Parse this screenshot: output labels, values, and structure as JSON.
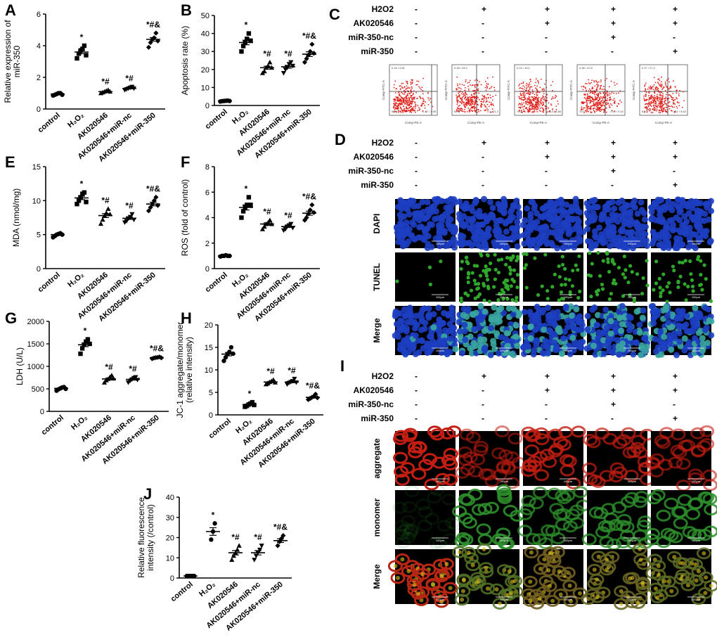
{
  "panel_letters": [
    "A",
    "B",
    "C",
    "D",
    "E",
    "F",
    "G",
    "H",
    "I",
    "J"
  ],
  "categories": [
    "control",
    "H2O2",
    "AK020546",
    "AK020546+miR-nc",
    "AK020546+miR-350"
  ],
  "categories_rendered": [
    "control",
    "H₂O₂",
    "AK020546",
    "AK020546+miR-nc",
    "AK020546+miR-350"
  ],
  "chart_data": [
    {
      "id": "A",
      "type": "scatter",
      "ylabel": "Relative expression of miR-350",
      "ylim": [
        0,
        6
      ],
      "yticks": [
        0,
        2,
        4,
        6
      ],
      "categories": [
        "control",
        "H2O2",
        "AK020546",
        "AK020546+miR-nc",
        "AK020546+miR-350"
      ],
      "values": [
        0.95,
        3.6,
        1.1,
        1.3,
        4.4
      ],
      "markers": [
        "circle",
        "square",
        "triangle",
        "triangle-down",
        "diamond"
      ],
      "points": [
        [
          0.85,
          0.9,
          0.95,
          1.0,
          1.0,
          0.9
        ],
        [
          3.2,
          3.5,
          3.7,
          3.8,
          4.0,
          3.4
        ],
        [
          1.0,
          1.05,
          1.1,
          1.15,
          1.2,
          1.1
        ],
        [
          1.2,
          1.25,
          1.3,
          1.35,
          1.4,
          1.3
        ],
        [
          3.9,
          4.2,
          4.4,
          4.5,
          4.8,
          4.3
        ]
      ],
      "annotations": [
        "",
        "*",
        "*#",
        "*#",
        "*#&"
      ]
    },
    {
      "id": "B",
      "type": "scatter",
      "ylabel": "Apoptosis rate (%)",
      "ylim": [
        0,
        50
      ],
      "yticks": [
        0,
        10,
        20,
        30,
        40,
        50
      ],
      "categories": [
        "control",
        "H2O2",
        "AK020546",
        "AK020546+miR-nc",
        "AK020546+miR-350"
      ],
      "values": [
        2.5,
        35,
        21,
        21.5,
        28.5
      ],
      "markers": [
        "circle",
        "square",
        "triangle",
        "triangle-down",
        "diamond"
      ],
      "points": [
        [
          2.2,
          2.4,
          2.5,
          2.6,
          2.7,
          2.5
        ],
        [
          30,
          33,
          35,
          37,
          40,
          36
        ],
        [
          18,
          19,
          21,
          22,
          24,
          21
        ],
        [
          18,
          20,
          21,
          23,
          24,
          22
        ],
        [
          24,
          26,
          28,
          30,
          34,
          29
        ]
      ],
      "annotations": [
        "",
        "*",
        "*#",
        "*#",
        "*#&"
      ]
    },
    {
      "id": "E",
      "type": "scatter",
      "ylabel": "MDA (nmol/mg)",
      "ylim": [
        0,
        15
      ],
      "yticks": [
        0,
        5,
        10,
        15
      ],
      "categories": [
        "control",
        "H2O2",
        "AK020546",
        "AK020546+miR-nc",
        "AK020546+miR-350"
      ],
      "values": [
        5.0,
        10.4,
        7.8,
        7.4,
        9.5
      ],
      "markers": [
        "circle",
        "square",
        "triangle",
        "triangle-down",
        "diamond"
      ],
      "points": [
        [
          4.6,
          4.8,
          5.0,
          5.1,
          5.2,
          5.0
        ],
        [
          9.5,
          10.0,
          10.5,
          11.0,
          11.2,
          9.8
        ],
        [
          6.6,
          7.2,
          7.8,
          8.2,
          8.8,
          8.0
        ],
        [
          6.8,
          7.0,
          7.4,
          7.6,
          8.0,
          7.2
        ],
        [
          8.5,
          9.0,
          9.5,
          10.0,
          10.5,
          9.3
        ]
      ],
      "annotations": [
        "",
        "*",
        "*#",
        "*#",
        "*#&"
      ]
    },
    {
      "id": "F",
      "type": "scatter",
      "ylabel": "ROS (fold of control)",
      "ylim": [
        0,
        8
      ],
      "yticks": [
        0,
        2,
        4,
        6,
        8
      ],
      "categories": [
        "control",
        "H2O2",
        "AK020546",
        "AK020546+miR-nc",
        "AK020546+miR-350"
      ],
      "values": [
        1.0,
        4.8,
        3.5,
        3.3,
        4.35
      ],
      "markers": [
        "circle",
        "square",
        "triangle",
        "triangle-down",
        "diamond"
      ],
      "points": [
        [
          0.95,
          1.0,
          1.0,
          1.05,
          1.0,
          1.0
        ],
        [
          4.0,
          4.5,
          4.8,
          5.0,
          5.6,
          5.0
        ],
        [
          3.1,
          3.3,
          3.5,
          3.6,
          3.8,
          3.5
        ],
        [
          3.0,
          3.1,
          3.3,
          3.4,
          3.5,
          3.2
        ],
        [
          3.8,
          4.0,
          4.3,
          4.6,
          5.0,
          4.4
        ]
      ],
      "annotations": [
        "",
        "*",
        "*#",
        "*#",
        "*#&"
      ]
    },
    {
      "id": "G",
      "type": "scatter",
      "ylabel": "LDH (U/L)",
      "ylim": [
        0,
        2000
      ],
      "yticks": [
        0,
        500,
        1000,
        1500,
        2000
      ],
      "categories": [
        "control",
        "H2O2",
        "AK020546",
        "AK020546+miR-nc",
        "AK020546+miR-350"
      ],
      "values": [
        510,
        1480,
        720,
        710,
        1195
      ],
      "markers": [
        "circle",
        "square",
        "triangle",
        "triangle-down",
        "diamond"
      ],
      "points": [
        [
          460,
          490,
          510,
          530,
          540,
          500
        ],
        [
          1280,
          1400,
          1480,
          1550,
          1600,
          1500
        ],
        [
          640,
          690,
          720,
          760,
          800,
          730
        ],
        [
          640,
          680,
          710,
          740,
          760,
          700
        ],
        [
          1170,
          1185,
          1195,
          1200,
          1210,
          1190
        ]
      ],
      "annotations": [
        "",
        "*",
        "*#",
        "*#",
        "*#&"
      ]
    },
    {
      "id": "H",
      "type": "scatter",
      "ylabel": "JC-1 aggregate/monomer (relative intensity)",
      "ylim": [
        0,
        20
      ],
      "yticks": [
        0,
        5,
        10,
        15,
        20
      ],
      "categories": [
        "control",
        "H2O2",
        "AK020546",
        "AK020546+miR-nc",
        "AK020546+miR-350"
      ],
      "values": [
        13.5,
        2.3,
        7.3,
        7.3,
        3.9
      ],
      "markers": [
        "circle",
        "square",
        "triangle",
        "triangle-down",
        "diamond"
      ],
      "points": [
        [
          12.0,
          12.8,
          13.5,
          14.0,
          15.0,
          13.6
        ],
        [
          1.8,
          2.0,
          2.3,
          2.5,
          2.8,
          2.2
        ],
        [
          6.8,
          7.0,
          7.3,
          7.5,
          7.8,
          7.2
        ],
        [
          6.8,
          7.1,
          7.3,
          7.5,
          8.0,
          7.2
        ],
        [
          3.4,
          3.6,
          3.9,
          4.1,
          4.6,
          3.8
        ]
      ],
      "annotations": [
        "",
        "*",
        "*#",
        "*#",
        "*#&"
      ]
    },
    {
      "id": "J",
      "type": "scatter",
      "ylabel": "Relative fluorescence intensity (/control)",
      "ylim": [
        0,
        40
      ],
      "yticks": [
        0,
        10,
        20,
        30,
        40
      ],
      "categories": [
        "control",
        "H2O2",
        "AK020546",
        "AK020546+miR-nc",
        "AK020546+miR-350"
      ],
      "values": [
        1,
        23,
        12.5,
        12.5,
        18.5
      ],
      "markers": [
        "circle",
        "circle",
        "triangle",
        "triangle-down",
        "diamond"
      ],
      "points": [
        [
          1,
          1,
          1,
          1,
          1
        ],
        [
          19,
          23,
          27
        ],
        [
          9,
          11,
          12.5,
          14,
          16
        ],
        [
          9,
          11,
          12.5,
          14,
          16
        ],
        [
          16,
          18,
          19.5,
          21
        ]
      ],
      "annotations": [
        "",
        "*",
        "*#",
        "*#",
        "*#&"
      ]
    }
  ],
  "treatment_table": {
    "row_labels": [
      "H2O2",
      "AK020546",
      "miR-350-nc",
      "miR-350"
    ],
    "columns": [
      [
        "-",
        "-",
        "-",
        "-"
      ],
      [
        "+",
        "-",
        "-",
        "-"
      ],
      [
        "+",
        "+",
        "-",
        "-"
      ],
      [
        "+",
        "+",
        "+",
        "-"
      ],
      [
        "+",
        "+",
        "-",
        "+"
      ]
    ]
  },
  "flow": {
    "quadrant_values": [
      [
        "0.18 / 3.81",
        "0.17 / 1.95",
        "95.8"
      ],
      [
        "0.38 / 28.2",
        "0.1 / 11.2",
        "60.3"
      ],
      [
        "0.24 / 16.1",
        "0.13 / 4.88",
        "78.8"
      ],
      [
        "0.38 / 22.5",
        "0.11 / 9.32",
        "70.0"
      ],
      [
        "0.27 / 27.2",
        "0.11 / 5.62",
        "67.0"
      ]
    ],
    "xlabel": "Comp-PE-A",
    "ylabel": "Comp-FITC-A"
  },
  "tunel_rows": [
    "DAPI",
    "TUNEL",
    "Merge"
  ],
  "jc1_rows": [
    "aggregate",
    "monomer",
    "Merge"
  ],
  "scale_bar": "100μm",
  "colors": {
    "flow": "#e0201a",
    "dapi": "#1d3ec2",
    "tunel": "#2fa72a",
    "aggregate": "#c41e12",
    "monomer": "#2d8f2c"
  }
}
